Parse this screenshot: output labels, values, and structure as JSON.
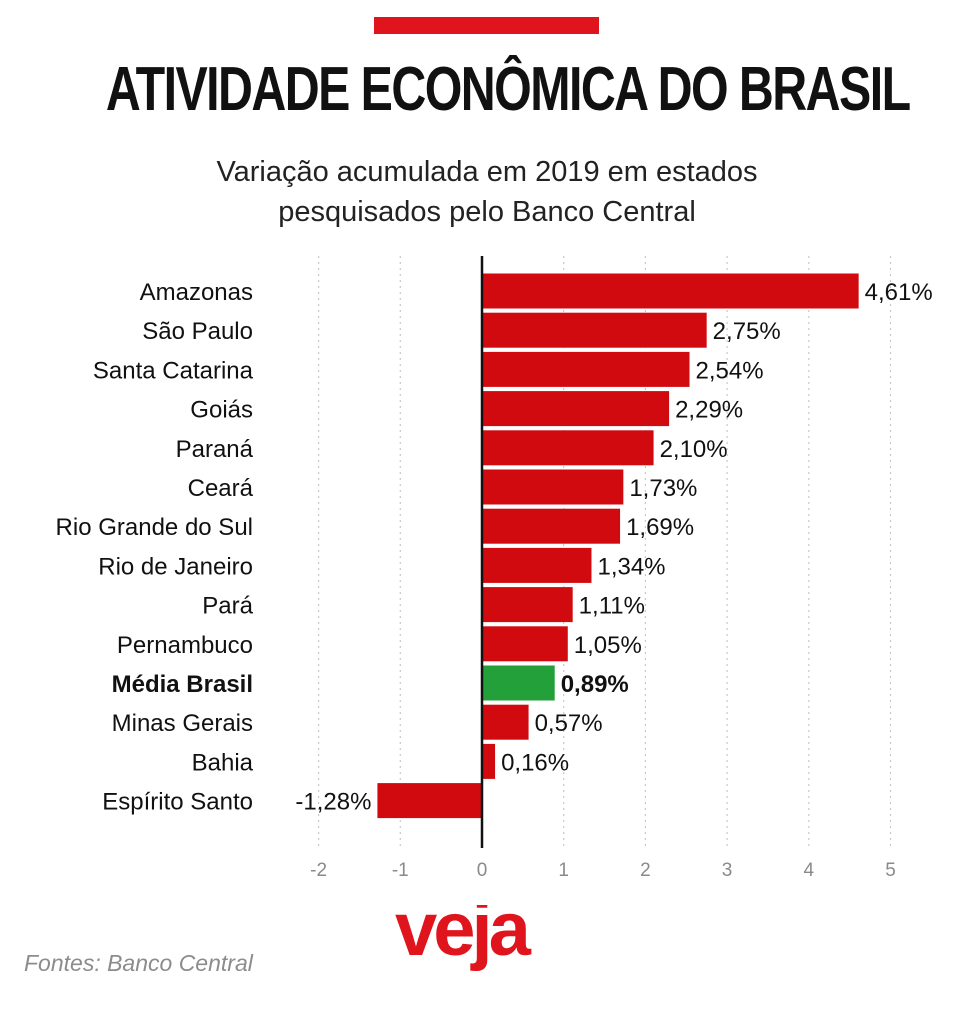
{
  "header": {
    "title": "ATIVIDADE ECONÔMICA DO BRASIL",
    "subtitle_line1": "Variação acumulada em 2019 em estados",
    "subtitle_line2": "pesquisados pelo Banco Central"
  },
  "footer": {
    "source": "Fontes: Banco Central",
    "logo_text": "veja"
  },
  "colors": {
    "bar": "#d10a10",
    "highlight_bar": "#23a03a",
    "accent": "#e0141c"
  },
  "chart_data": {
    "type": "bar",
    "orientation": "horizontal",
    "title": "ATIVIDADE ECONÔMICA DO BRASIL",
    "subtitle": "Variação acumulada em 2019 em estados pesquisados pelo Banco Central",
    "categories": [
      "Amazonas",
      "São Paulo",
      "Santa Catarina",
      "Goiás",
      "Paraná",
      "Ceará",
      "Rio Grande do Sul",
      "Rio de Janeiro",
      "Pará",
      "Pernambuco",
      "Média Brasil",
      "Minas Gerais",
      "Bahia",
      "Espírito Santo"
    ],
    "values": [
      4.61,
      2.75,
      2.54,
      2.29,
      2.1,
      1.73,
      1.69,
      1.34,
      1.11,
      1.05,
      0.89,
      0.57,
      0.16,
      -1.28
    ],
    "value_labels": [
      "4,61%",
      "2,75%",
      "2,54%",
      "2,29%",
      "2,10%",
      "1,73%",
      "1,69%",
      "1,34%",
      "1,11%",
      "1,05%",
      "0,89%",
      "0,57%",
      "0,16%",
      "-1,28%"
    ],
    "highlight": "Média Brasil",
    "xlim": [
      -2.1,
      5.1
    ],
    "xticks": [
      -2,
      -1,
      0,
      1,
      2,
      3,
      4,
      5
    ],
    "xtick_labels": [
      "-2",
      "-1",
      "0",
      "1",
      "2",
      "3",
      "4",
      "5"
    ],
    "grid": "vertical dotted",
    "xlabel": "",
    "ylabel": ""
  }
}
